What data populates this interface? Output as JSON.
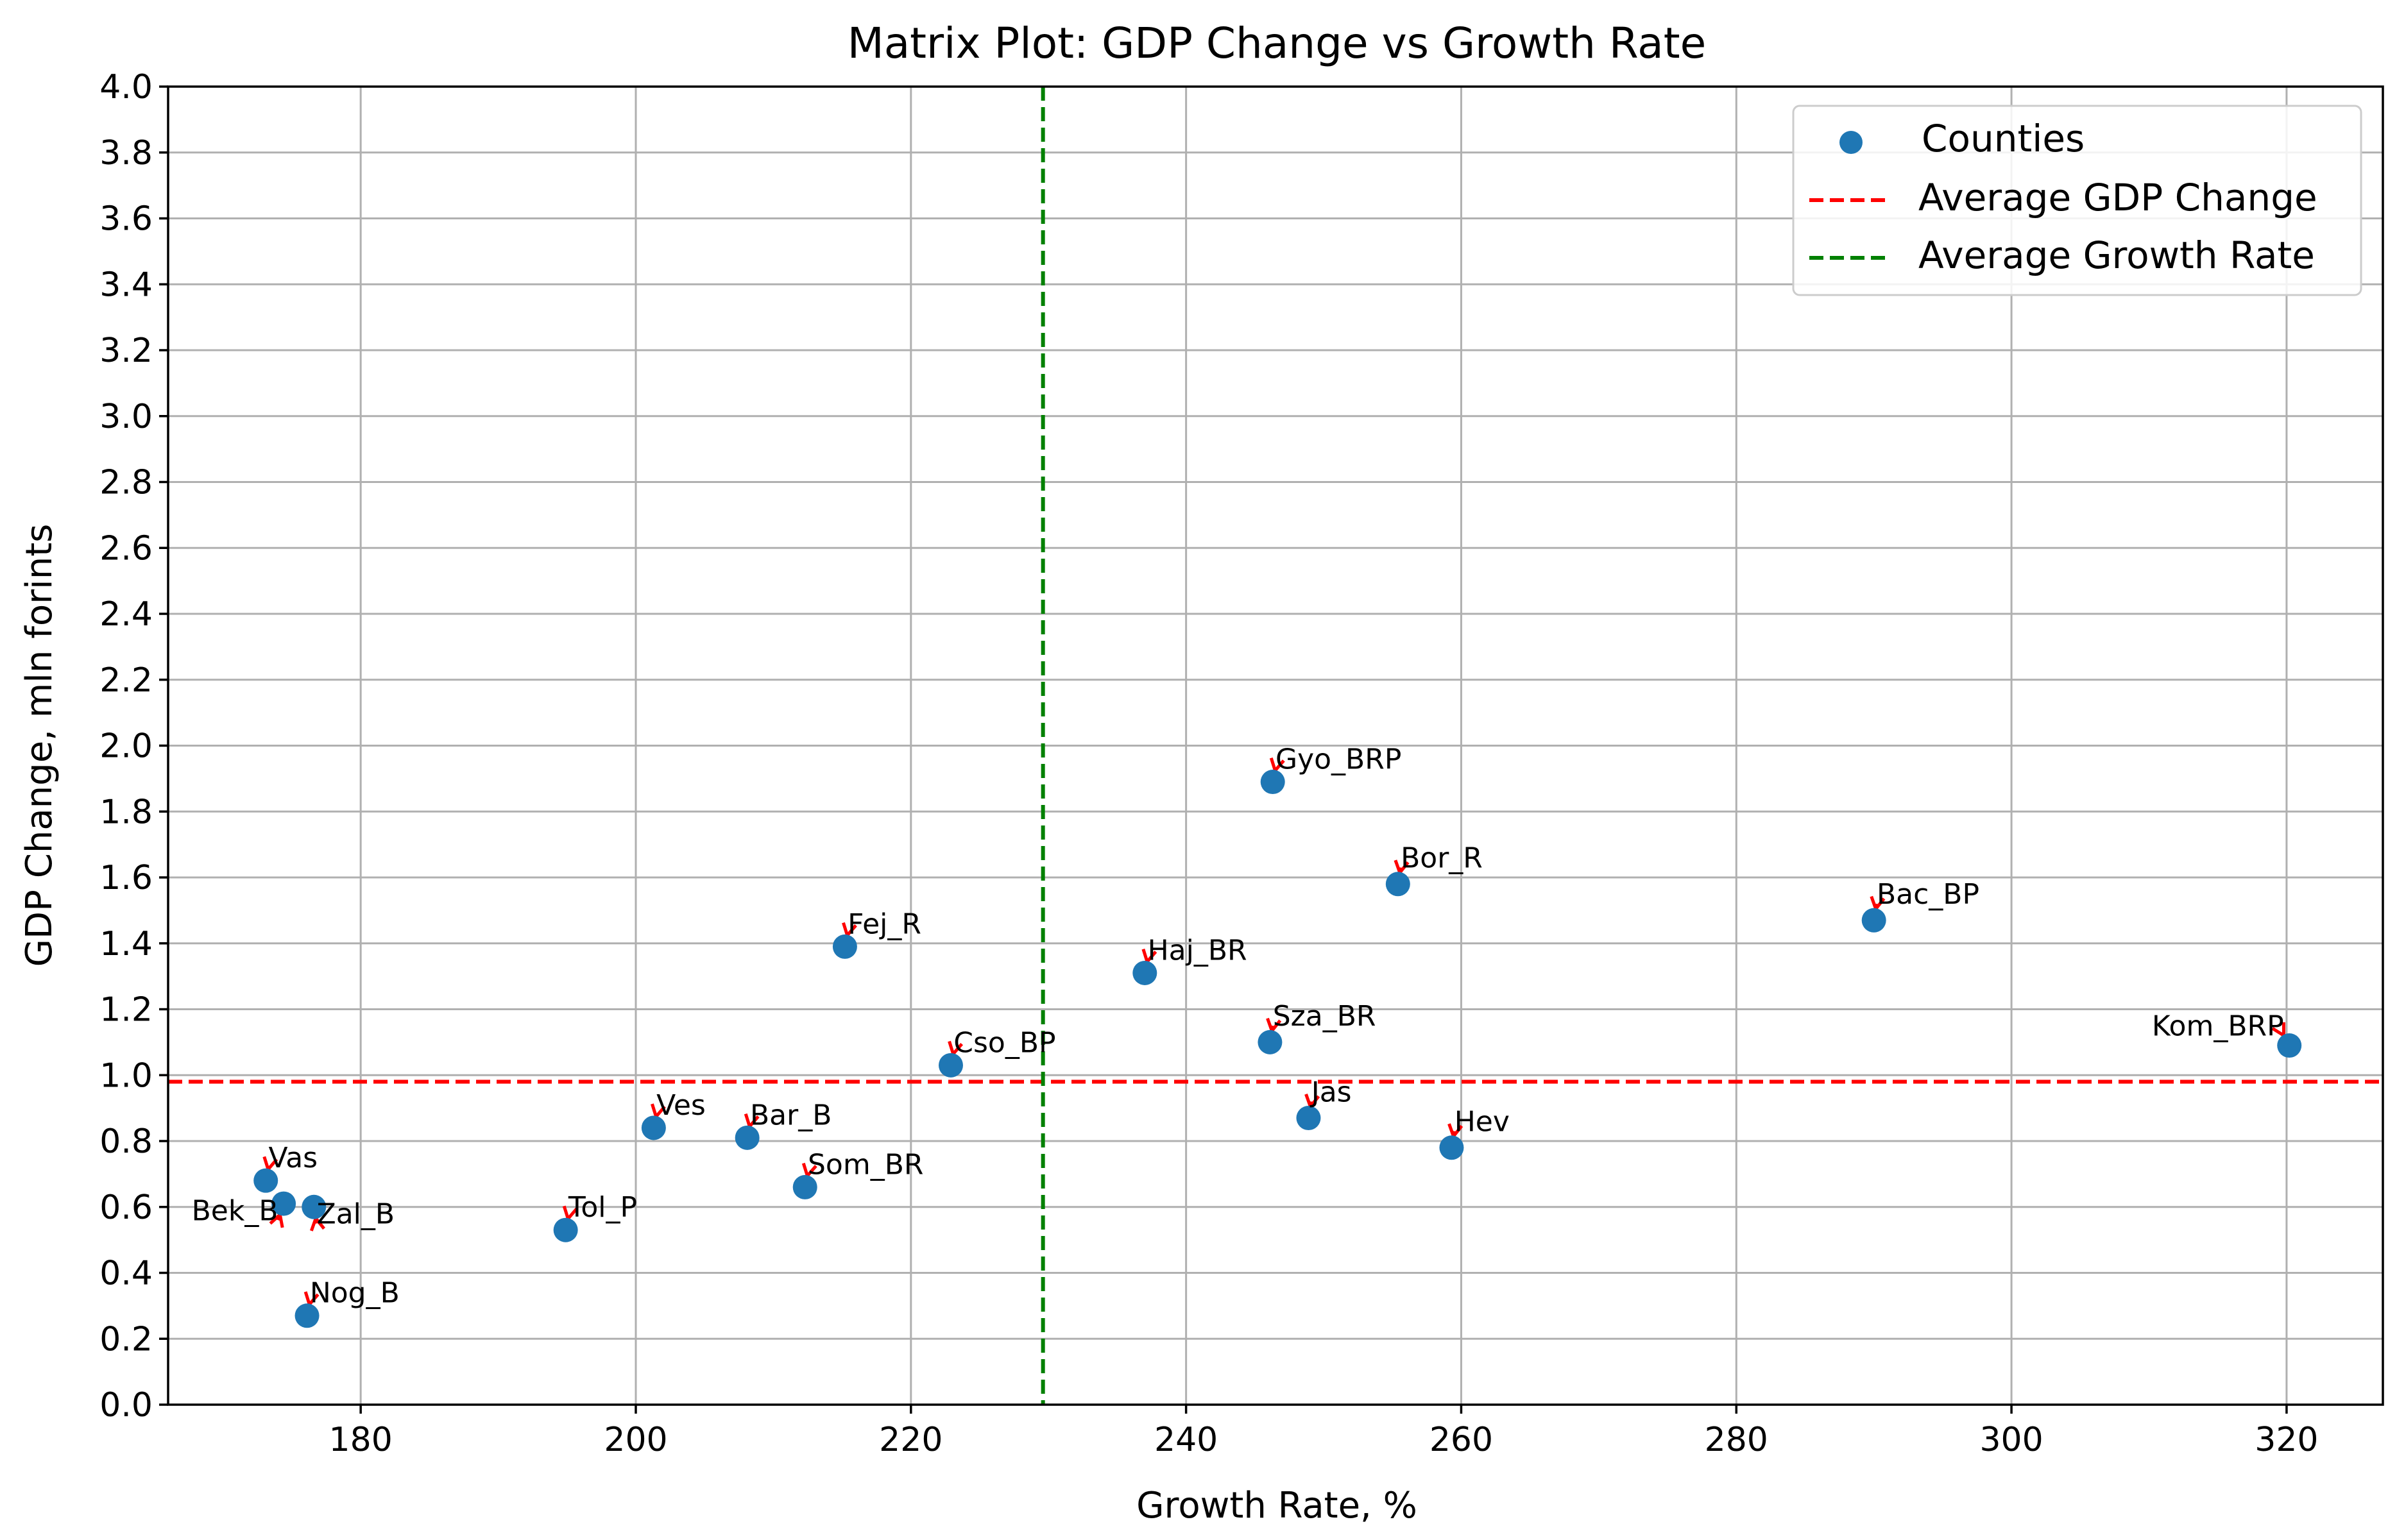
{
  "chart_data": {
    "type": "scatter",
    "title": "Matrix Plot: GDP Change vs Growth Rate",
    "xlabel": "Growth Rate, %",
    "ylabel": "GDP Change, mln forints",
    "xlim": [
      166,
      327
    ],
    "ylim": [
      0.0,
      4.0
    ],
    "xticks": [
      "180",
      "200",
      "220",
      "240",
      "260",
      "280",
      "300",
      "320"
    ],
    "xtick_values": [
      180,
      200,
      220,
      240,
      260,
      280,
      300,
      320
    ],
    "yticks": [
      "0.0",
      "0.2",
      "0.4",
      "0.6",
      "0.8",
      "1.0",
      "1.2",
      "1.4",
      "1.6",
      "1.8",
      "2.0",
      "2.2",
      "2.4",
      "2.6",
      "2.8",
      "3.0",
      "3.2",
      "3.4",
      "3.6",
      "3.8",
      "4.0"
    ],
    "ytick_values": [
      0.0,
      0.2,
      0.4,
      0.6,
      0.8,
      1.0,
      1.2,
      1.4,
      1.6,
      1.8,
      2.0,
      2.2,
      2.4,
      2.6,
      2.8,
      3.0,
      3.2,
      3.4,
      3.6,
      3.8,
      4.0
    ],
    "grid": true,
    "series": [
      {
        "name": "Counties",
        "color": "#1f77b4",
        "points": [
          {
            "label": "Gyo_BRP",
            "x": 246.3,
            "y": 1.89,
            "text_x": 246.5,
            "text_y": 1.93,
            "text_anchor": "start"
          },
          {
            "label": "Bor_R",
            "x": 255.4,
            "y": 1.58,
            "text_x": 255.6,
            "text_y": 1.63,
            "text_anchor": "start"
          },
          {
            "label": "Bac_BP",
            "x": 290.0,
            "y": 1.47,
            "text_x": 290.2,
            "text_y": 1.52,
            "text_anchor": "start"
          },
          {
            "label": "Fej_R",
            "x": 215.2,
            "y": 1.39,
            "text_x": 215.4,
            "text_y": 1.43,
            "text_anchor": "start"
          },
          {
            "label": "Haj_BR",
            "x": 237.0,
            "y": 1.31,
            "text_x": 237.2,
            "text_y": 1.35,
            "text_anchor": "start"
          },
          {
            "label": "Sza_BR",
            "x": 246.1,
            "y": 1.1,
            "text_x": 246.3,
            "text_y": 1.15,
            "text_anchor": "start"
          },
          {
            "label": "Kom_BRP",
            "x": 320.2,
            "y": 1.09,
            "text_x": 319.8,
            "text_y": 1.12,
            "text_anchor": "end"
          },
          {
            "label": "Cso_BP",
            "x": 222.9,
            "y": 1.03,
            "text_x": 223.1,
            "text_y": 1.07,
            "text_anchor": "start"
          },
          {
            "label": "Jas",
            "x": 248.9,
            "y": 0.87,
            "text_x": 249.1,
            "text_y": 0.92,
            "text_anchor": "start"
          },
          {
            "label": "Ves",
            "x": 201.3,
            "y": 0.84,
            "text_x": 201.5,
            "text_y": 0.88,
            "text_anchor": "start"
          },
          {
            "label": "Bar_B",
            "x": 208.1,
            "y": 0.81,
            "text_x": 208.3,
            "text_y": 0.85,
            "text_anchor": "start"
          },
          {
            "label": "Hev",
            "x": 259.3,
            "y": 0.78,
            "text_x": 259.5,
            "text_y": 0.83,
            "text_anchor": "start"
          },
          {
            "label": "Vas",
            "x": 173.1,
            "y": 0.68,
            "text_x": 173.3,
            "text_y": 0.72,
            "text_anchor": "start"
          },
          {
            "label": "Som_BR",
            "x": 212.3,
            "y": 0.66,
            "text_x": 212.5,
            "text_y": 0.7,
            "text_anchor": "start"
          },
          {
            "label": "Bek_B",
            "x": 174.4,
            "y": 0.61,
            "text_x": 174.0,
            "text_y": 0.56,
            "text_anchor": "end"
          },
          {
            "label": "Zal_B",
            "x": 176.6,
            "y": 0.6,
            "text_x": 176.8,
            "text_y": 0.55,
            "text_anchor": "start"
          },
          {
            "label": "Tol_P",
            "x": 194.9,
            "y": 0.53,
            "text_x": 195.1,
            "text_y": 0.57,
            "text_anchor": "start"
          },
          {
            "label": "Nog_B",
            "x": 176.1,
            "y": 0.27,
            "text_x": 176.3,
            "text_y": 0.31,
            "text_anchor": "start"
          }
        ]
      }
    ],
    "reference_lines": [
      {
        "name": "Average GDP Change",
        "orientation": "horizontal",
        "value": 0.98,
        "color": "#ff0000",
        "style": "dashed"
      },
      {
        "name": "Average Growth Rate",
        "orientation": "vertical",
        "value": 229.6,
        "color": "#008000",
        "style": "dashed"
      }
    ],
    "legend": {
      "position": "top-right",
      "entries": [
        {
          "label": "Counties",
          "kind": "marker",
          "color": "#1f77b4"
        },
        {
          "label": "Average GDP Change",
          "kind": "dashed-line",
          "color": "#ff0000"
        },
        {
          "label": "Average Growth Rate",
          "kind": "dashed-line",
          "color": "#008000"
        }
      ]
    }
  }
}
